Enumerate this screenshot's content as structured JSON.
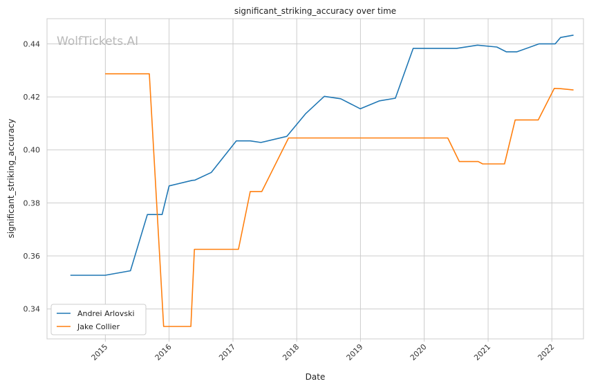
{
  "chart_data": {
    "type": "line",
    "title": "significant_striking_accuracy over time",
    "xlabel": "Date",
    "ylabel": "significant_striking_accuracy",
    "watermark": "WolfTickets.AI",
    "xlim": [
      "2014-02-01",
      "2022-07-01"
    ],
    "ylim": [
      0.3287,
      0.4495
    ],
    "x_ticks": [
      "2015",
      "2016",
      "2017",
      "2018",
      "2019",
      "2020",
      "2021",
      "2022"
    ],
    "y_ticks": [
      "0.34",
      "0.36",
      "0.38",
      "0.40",
      "0.42",
      "0.44"
    ],
    "grid": true,
    "legend_position": "lower-left",
    "series": [
      {
        "name": "Andrei Arlovski",
        "color": "#1f77b4",
        "points": [
          [
            "2014-06-15",
            0.3527
          ],
          [
            "2014-12-31",
            0.3527
          ],
          [
            "2015-05-25",
            0.3544
          ],
          [
            "2015-08-30",
            0.3756
          ],
          [
            "2015-11-22",
            0.3756
          ],
          [
            "2016-01-01",
            0.3864
          ],
          [
            "2016-05-12",
            0.3885
          ],
          [
            "2016-05-28",
            0.3886
          ],
          [
            "2016-08-30",
            0.3915
          ],
          [
            "2017-01-20",
            0.4034
          ],
          [
            "2017-04-10",
            0.4034
          ],
          [
            "2017-06-10",
            0.4028
          ],
          [
            "2017-11-05",
            0.4051
          ],
          [
            "2018-02-20",
            0.4136
          ],
          [
            "2018-06-08",
            0.4202
          ],
          [
            "2018-09-10",
            0.4193
          ],
          [
            "2018-12-31",
            0.4155
          ],
          [
            "2019-04-20",
            0.4185
          ],
          [
            "2019-07-20",
            0.4195
          ],
          [
            "2019-10-30",
            0.4383
          ],
          [
            "2020-07-05",
            0.4383
          ],
          [
            "2020-11-01",
            0.4395
          ],
          [
            "2021-02-20",
            0.4388
          ],
          [
            "2021-04-15",
            0.437
          ],
          [
            "2021-06-15",
            0.437
          ],
          [
            "2021-10-20",
            0.44
          ],
          [
            "2022-01-20",
            0.44
          ],
          [
            "2022-02-20",
            0.4424
          ],
          [
            "2022-05-05",
            0.4433
          ]
        ]
      },
      {
        "name": "Jake Collier",
        "color": "#ff7f0e",
        "points": [
          [
            "2014-12-31",
            0.4287
          ],
          [
            "2015-09-10",
            0.4287
          ],
          [
            "2015-12-01",
            0.3334
          ],
          [
            "2016-05-05",
            0.3334
          ],
          [
            "2016-05-25",
            0.3625
          ],
          [
            "2017-02-01",
            0.3625
          ],
          [
            "2017-04-10",
            0.3843
          ],
          [
            "2017-06-15",
            0.3843
          ],
          [
            "2017-11-15",
            0.4045
          ],
          [
            "2020-05-15",
            0.4045
          ],
          [
            "2020-07-20",
            0.3956
          ],
          [
            "2020-11-05",
            0.3956
          ],
          [
            "2020-12-01",
            0.3947
          ],
          [
            "2021-04-05",
            0.3947
          ],
          [
            "2021-06-05",
            0.4113
          ],
          [
            "2021-10-15",
            0.4113
          ],
          [
            "2022-01-15",
            0.4232
          ],
          [
            "2022-02-20",
            0.4231
          ],
          [
            "2022-05-05",
            0.4226
          ]
        ]
      }
    ]
  }
}
